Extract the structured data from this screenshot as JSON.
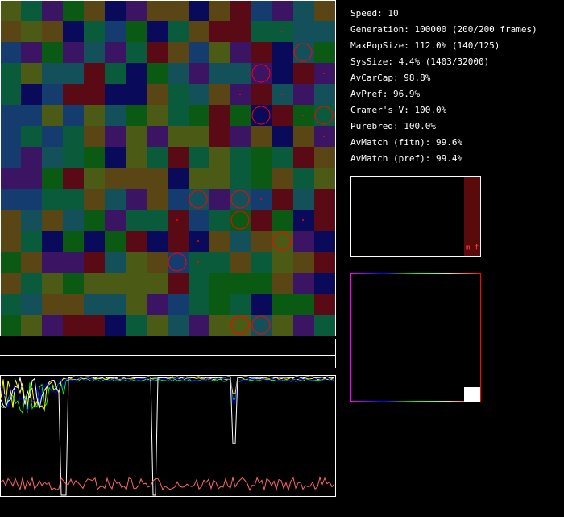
{
  "stats": [
    "Speed: 10",
    "Generation: 100000 (200/200 frames)",
    "MaxPopSize: 112.0% (140/125)",
    "SysSize: 4.4% (1403/32000)",
    "AvCarCap: 98.8%",
    "AvPref: 96.9%",
    "Cramer's V: 100.0%",
    "Purebred: 100.0%",
    "AvMatch (fitn): 99.6%",
    "AvMatch (pref): 99.4%"
  ],
  "histogram_label": "m f"
}
